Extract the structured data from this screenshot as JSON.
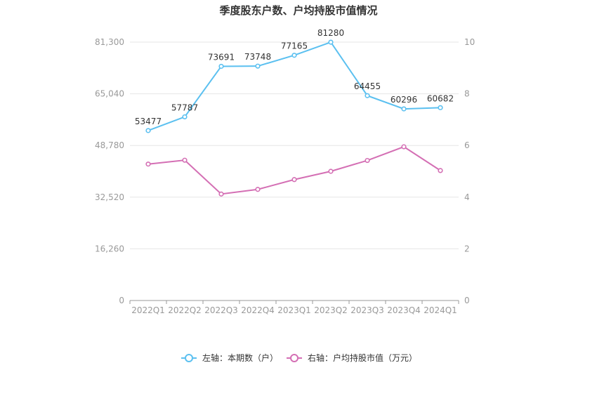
{
  "chart_data": {
    "type": "line",
    "title": "季度股东户数、户均持股市值情况",
    "categories": [
      "2022Q1",
      "2022Q2",
      "2022Q3",
      "2022Q4",
      "2023Q1",
      "2023Q2",
      "2023Q3",
      "2023Q4",
      "2024Q1"
    ],
    "left_axis": {
      "ticks": [
        "0",
        "16,260",
        "32,520",
        "48,780",
        "65,040",
        "81,300"
      ],
      "min": 0,
      "max": 81300
    },
    "right_axis": {
      "ticks": [
        "0",
        "2",
        "4",
        "6",
        "8",
        "10"
      ],
      "min": 0,
      "max": 10
    },
    "grid": true,
    "legend_position": "bottom",
    "series": [
      {
        "name": "左轴：本期数（户）",
        "axis": "left",
        "color": "#5bc0f0",
        "values": [
          53477,
          57787,
          73691,
          73748,
          77165,
          81280,
          64455,
          60296,
          60682
        ],
        "labels": [
          "53477",
          "57787",
          "73691",
          "73748",
          "77165",
          "81280",
          "64455",
          "60296",
          "60682"
        ]
      },
      {
        "name": "右轴：户均持股市值（万元）",
        "axis": "right",
        "color": "#d46fb4",
        "values": [
          5.28,
          5.43,
          4.12,
          4.3,
          4.68,
          5.0,
          5.42,
          5.95,
          5.03
        ]
      }
    ]
  }
}
